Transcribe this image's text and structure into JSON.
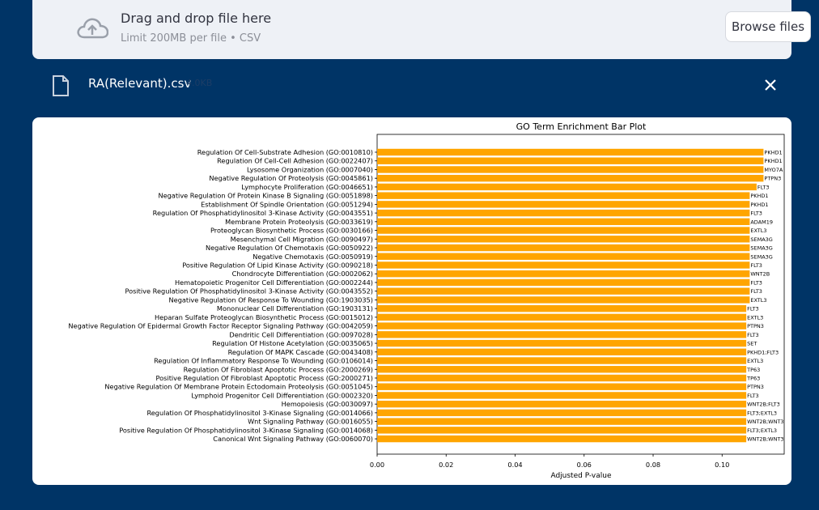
{
  "uploader": {
    "title": "Drag and drop file here",
    "limit": "Limit 200MB per file • CSV",
    "browse_label": "Browse files",
    "icon": "cloud-upload-icon"
  },
  "file": {
    "name": "RA(Relevant).csv",
    "size": "4.0KB",
    "icon": "file-icon",
    "close_icon": "close-icon"
  },
  "colors": {
    "background": "#003466",
    "bar": "#FFA500"
  },
  "chart_data": {
    "type": "bar",
    "orientation": "horizontal",
    "title": "GO Term Enrichment Bar Plot",
    "xlabel": "Adjusted P-value",
    "ylabel": "",
    "xlim": [
      0,
      0.118
    ],
    "xticks": [
      "0.00",
      "0.02",
      "0.04",
      "0.06",
      "0.08",
      "0.10"
    ],
    "grid": false,
    "categories": [
      "Regulation Of Cell-Substrate Adhesion (GO:0010810)",
      "Regulation Of Cell-Cell Adhesion (GO:0022407)",
      "Lysosome Organization (GO:0007040)",
      "Negative Regulation Of Proteolysis (GO:0045861)",
      "Lymphocyte Proliferation (GO:0046651)",
      "Negative Regulation Of Protein Kinase B Signaling (GO:0051898)",
      "Establishment Of Spindle Orientation (GO:0051294)",
      "Regulation Of Phosphatidylinositol 3-Kinase Activity (GO:0043551)",
      "Membrane Protein Proteolysis (GO:0033619)",
      "Proteoglycan Biosynthetic Process (GO:0030166)",
      "Mesenchymal Cell Migration (GO:0090497)",
      "Negative Regulation Of Chemotaxis (GO:0050922)",
      "Negative Chemotaxis (GO:0050919)",
      "Positive Regulation Of Lipid Kinase Activity (GO:0090218)",
      "Chondrocyte Differentiation (GO:0002062)",
      "Hematopoietic Progenitor Cell Differentiation (GO:0002244)",
      "Positive Regulation Of Phosphatidylinositol 3-Kinase Activity (GO:0043552)",
      "Negative Regulation Of Response To Wounding (GO:1903035)",
      "Mononuclear Cell Differentiation (GO:1903131)",
      "Heparan Sulfate Proteoglycan Biosynthetic Process (GO:0015012)",
      "Negative Regulation Of Epidermal Growth Factor Receptor Signaling Pathway (GO:0042059)",
      "Dendritic Cell Differentiation (GO:0097028)",
      "Regulation Of Histone Acetylation (GO:0035065)",
      "Regulation Of MAPK Cascade (GO:0043408)",
      "Regulation Of Inflammatory Response To Wounding (GO:0106014)",
      "Regulation Of Fibroblast Apoptotic Process (GO:2000269)",
      "Positive Regulation Of Fibroblast Apoptotic Process (GO:2000271)",
      "Negative Regulation Of Membrane Protein Ectodomain Proteolysis (GO:0051045)",
      "Lymphoid Progenitor Cell Differentiation (GO:0002320)",
      "Hemopoiesis (GO:0030097)",
      "Regulation Of Phosphatidylinositol 3-Kinase Signaling (GO:0014066)",
      "Wnt Signaling Pathway (GO:0016055)",
      "Positive Regulation Of Phosphatidylinositol 3-Kinase Signaling (GO:0014068)",
      "Canonical Wnt Signaling Pathway (GO:0060070)"
    ],
    "values": [
      0.112,
      0.112,
      0.112,
      0.112,
      0.11,
      0.108,
      0.108,
      0.108,
      0.108,
      0.108,
      0.108,
      0.108,
      0.108,
      0.108,
      0.108,
      0.108,
      0.108,
      0.108,
      0.107,
      0.107,
      0.107,
      0.107,
      0.107,
      0.107,
      0.107,
      0.107,
      0.107,
      0.107,
      0.107,
      0.107,
      0.107,
      0.107,
      0.107,
      0.107
    ],
    "bar_labels": [
      "PKHD1",
      "PKHD1",
      "MYO7A",
      "PTPN3",
      "FLT3",
      "PKHD1",
      "PKHD1",
      "FLT3",
      "ADAM19",
      "EXTL3",
      "SEMA3G",
      "SEMA3G",
      "SEMA3G",
      "FLT3",
      "WNT2B",
      "FLT3",
      "FLT3",
      "EXTL3",
      "FLT3",
      "EXTL3",
      "PTPN3",
      "FLT3",
      "SET",
      "PKHD1;FLT3",
      "EXTL3",
      "TP63",
      "TP63",
      "PTPN3",
      "FLT3",
      "WNT2B;FLT3",
      "FLT3;EXTL3",
      "WNT2B;WNT3",
      "FLT3;EXTL3",
      "WNT2B;WNT3"
    ]
  }
}
